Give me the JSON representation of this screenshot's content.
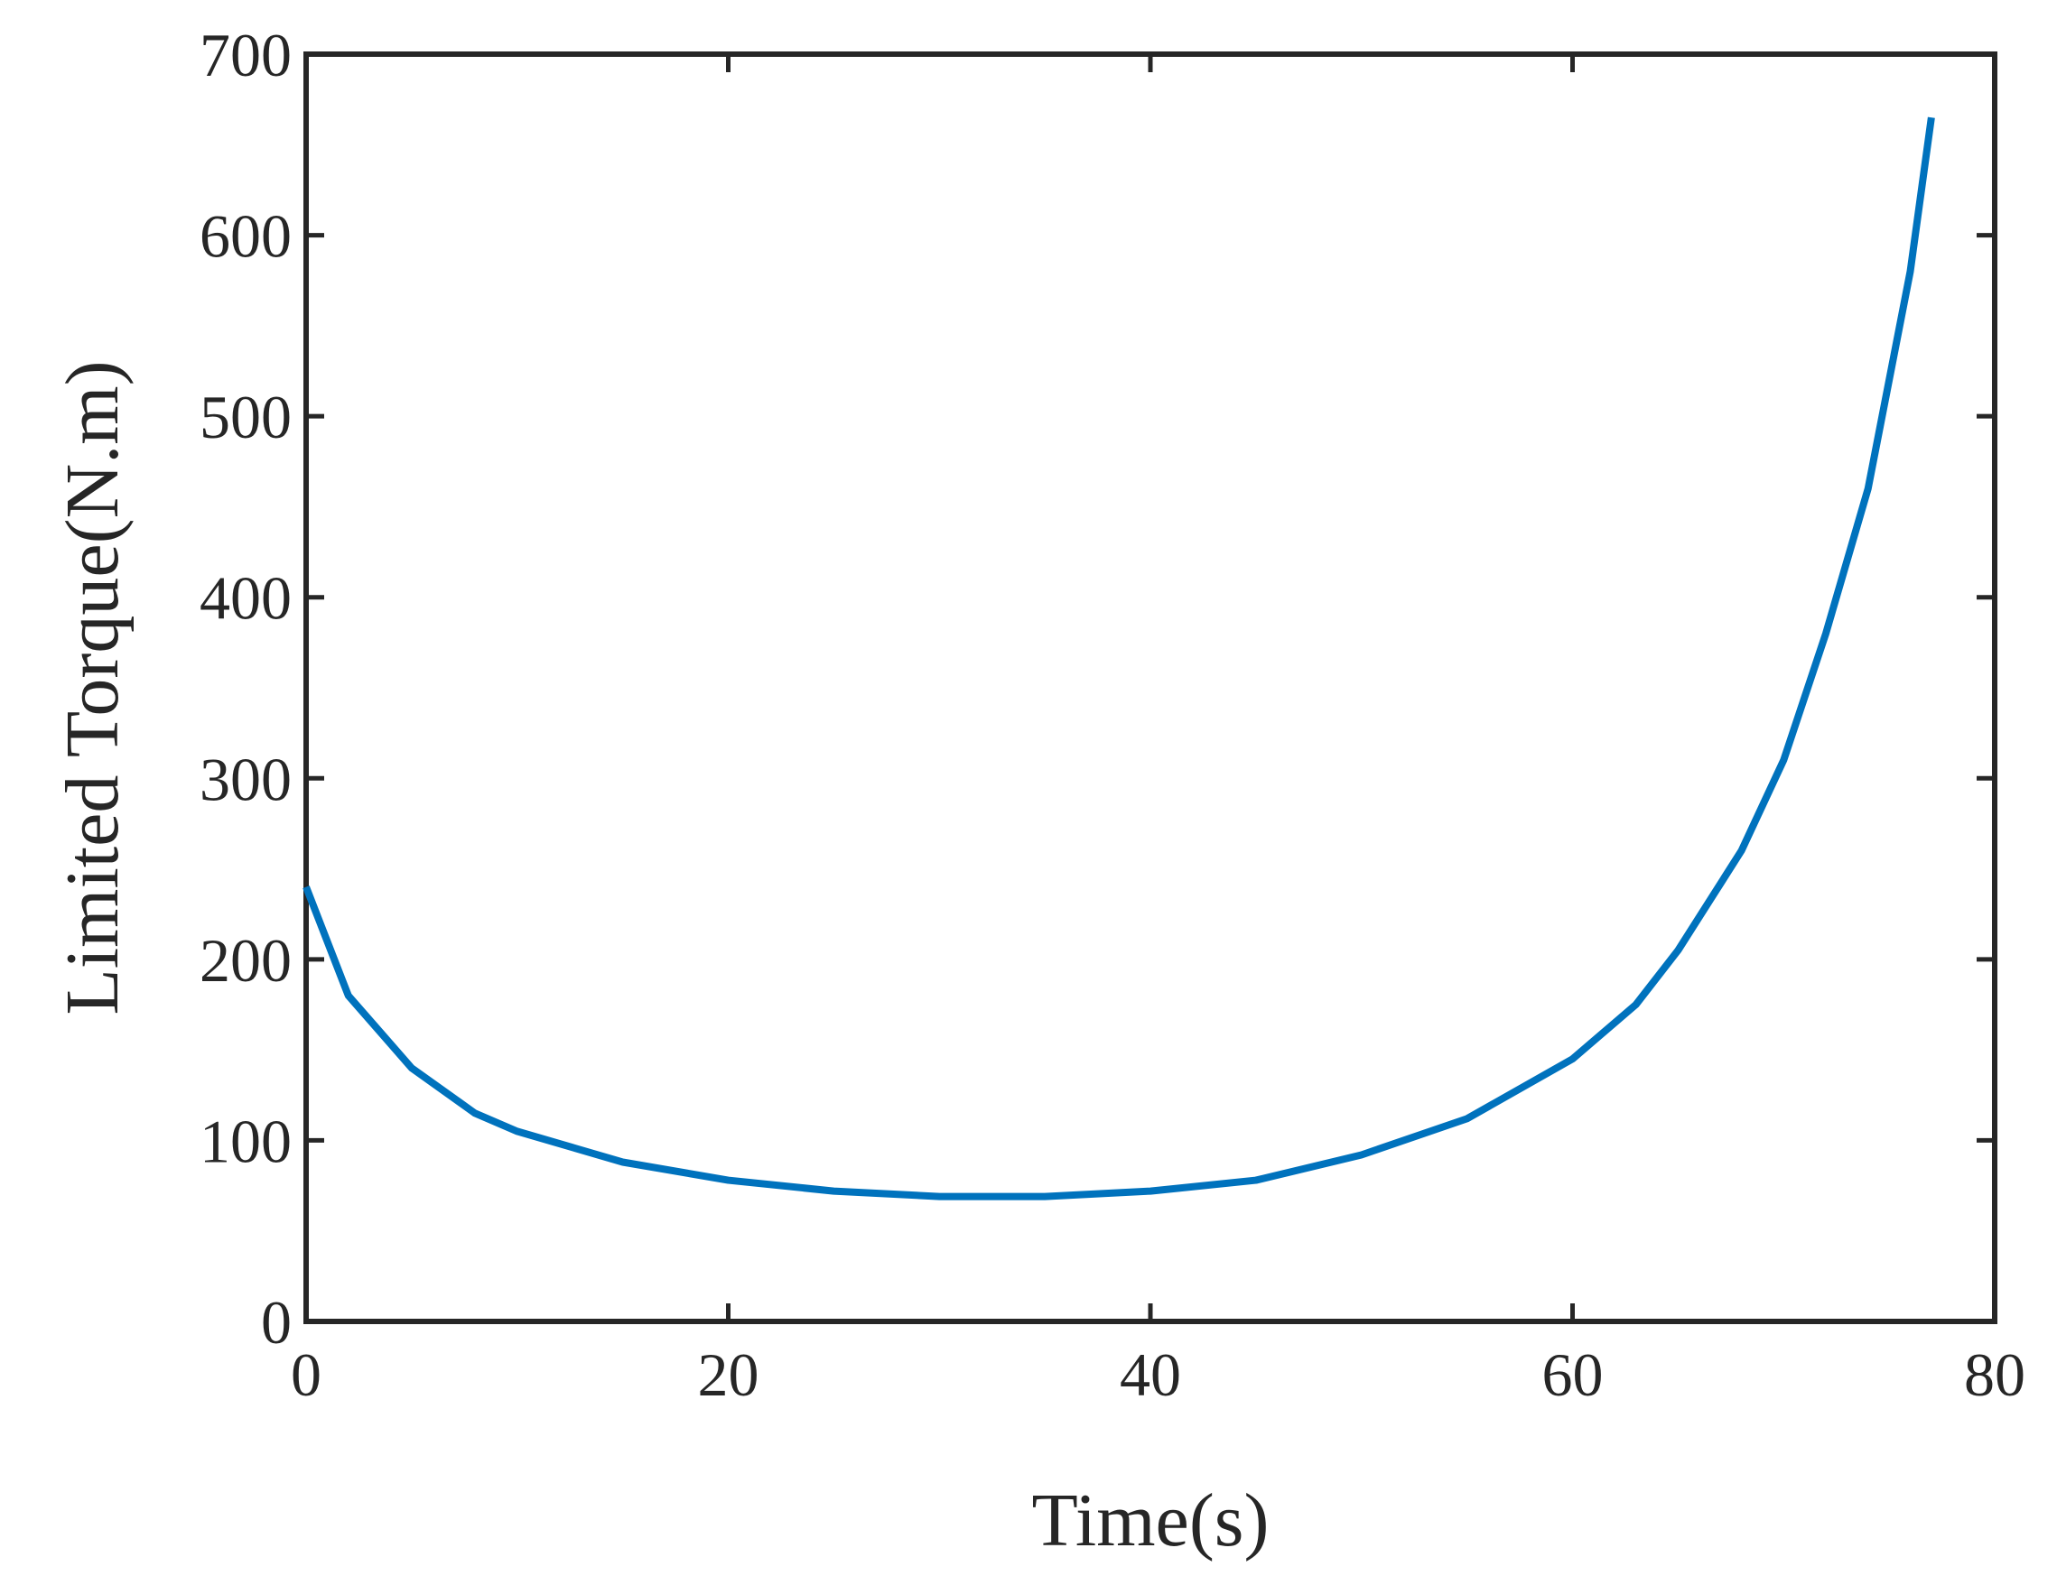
{
  "chart_data": {
    "type": "line",
    "xlabel": "Time(s)",
    "ylabel": "Limited Torque(N.m)",
    "x": [
      0,
      2,
      5,
      8,
      10,
      15,
      20,
      25,
      30,
      35,
      40,
      45,
      50,
      55,
      60,
      63,
      65,
      68,
      70,
      72,
      74,
      76,
      77
    ],
    "values": [
      240,
      180,
      140,
      115,
      105,
      88,
      78,
      72,
      69,
      69,
      72,
      78,
      92,
      112,
      145,
      175,
      205,
      260,
      310,
      380,
      460,
      580,
      665
    ],
    "color": "#0072bd",
    "xlim": [
      0,
      80
    ],
    "xticks": [
      0,
      20,
      40,
      60,
      80
    ],
    "ylim": [
      0,
      700
    ],
    "yticks": [
      0,
      100,
      200,
      300,
      400,
      500,
      600,
      700
    ],
    "grid": false
  }
}
